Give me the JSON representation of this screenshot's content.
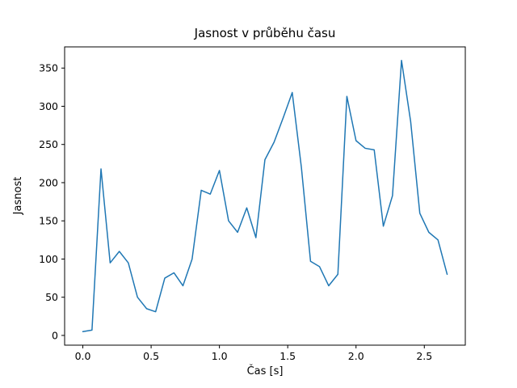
{
  "chart_data": {
    "type": "line",
    "title": "Jasnost v průběhu času",
    "xlabel": "Čas [s]",
    "ylabel": "Jasnost",
    "line_color": "#1f77b4",
    "background_color": "#ffffff",
    "grid": false,
    "legend": "none",
    "xlim": [
      -0.1333,
      2.8
    ],
    "ylim": [
      -12.75,
      377.75
    ],
    "xticks": {
      "values": [
        0,
        0.5,
        1.0,
        1.5,
        2.0,
        2.5
      ],
      "labels": [
        "0.0",
        "0.5",
        "1.0",
        "1.5",
        "2.0",
        "2.5"
      ]
    },
    "yticks": {
      "values": [
        0,
        50,
        100,
        150,
        200,
        250,
        300,
        350
      ],
      "labels": [
        "0",
        "50",
        "100",
        "150",
        "200",
        "250",
        "300",
        "350"
      ]
    },
    "x": [
      0.0,
      0.067,
      0.133,
      0.2,
      0.267,
      0.333,
      0.4,
      0.467,
      0.533,
      0.6,
      0.667,
      0.733,
      0.8,
      0.867,
      0.933,
      1.0,
      1.067,
      1.133,
      1.2,
      1.267,
      1.333,
      1.4,
      1.467,
      1.533,
      1.6,
      1.667,
      1.733,
      1.8,
      1.867,
      1.933,
      2.0,
      2.067,
      2.133,
      2.2,
      2.267,
      2.333,
      2.4,
      2.467,
      2.533,
      2.6,
      2.667
    ],
    "y": [
      5,
      7,
      218,
      95,
      110,
      95,
      50,
      35,
      31,
      75,
      82,
      65,
      100,
      190,
      185,
      216,
      150,
      135,
      167,
      128,
      230,
      253,
      285,
      318,
      220,
      97,
      90,
      65,
      80,
      313,
      255,
      245,
      243,
      143,
      183,
      360,
      280,
      160,
      135,
      125,
      80
    ]
  }
}
